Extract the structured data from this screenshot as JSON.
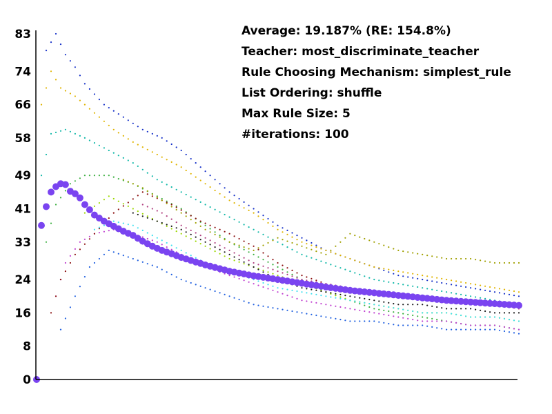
{
  "chart_data": {
    "type": "scatter",
    "title": "",
    "xlabel": "",
    "ylabel": "",
    "ylim": [
      0,
      83
    ],
    "xlim": [
      0,
      100
    ],
    "yticks": [
      0,
      8,
      16,
      24,
      33,
      41,
      49,
      58,
      66,
      74,
      83
    ],
    "grid": false,
    "annotations": [
      "Average: 19.187% (RE: 154.8%)",
      "Teacher: most_discriminate_teacher",
      "Rule Choosing Mechanism: simplest_rule",
      "List Ordering: shuffle",
      "Max Rule Size: 5",
      "#iterations: 100"
    ],
    "average_series": {
      "color": "#7a44f0",
      "x": [
        0,
        1,
        2,
        3,
        4,
        5,
        6,
        7,
        8,
        9,
        10,
        12,
        14,
        16,
        18,
        20,
        22,
        24,
        26,
        28,
        30,
        35,
        40,
        45,
        50,
        55,
        60,
        65,
        70,
        75,
        80,
        85,
        90,
        95,
        100
      ],
      "y": [
        0,
        37,
        41.5,
        45,
        46.3,
        47,
        46.8,
        45.2,
        44.6,
        43.6,
        42,
        39.5,
        38,
        36.8,
        35.6,
        34.6,
        33.2,
        32,
        31,
        30.2,
        29.3,
        27.5,
        26,
        24.9,
        24,
        23.1,
        22.2,
        21.4,
        20.8,
        20.2,
        19.6,
        19,
        18.6,
        18.2,
        17.8
      ]
    },
    "runs": [
      {
        "color": "#1530c8",
        "x": [
          2,
          4,
          6,
          8,
          10,
          14,
          18,
          22,
          26,
          30,
          35,
          40,
          45,
          50,
          55,
          60,
          65,
          70,
          75,
          80,
          85,
          90,
          95,
          100
        ],
        "y": [
          79,
          83,
          78,
          75,
          71,
          66,
          63,
          60,
          58,
          55,
          50,
          45,
          41,
          37,
          34,
          31,
          29,
          27,
          25,
          24,
          23,
          22,
          21,
          20
        ]
      },
      {
        "color": "#e0b400",
        "x": [
          1,
          3,
          5,
          8,
          12,
          16,
          20,
          25,
          30,
          35,
          40,
          45,
          50,
          55,
          60,
          65,
          70,
          75,
          80,
          85,
          90,
          95,
          100
        ],
        "y": [
          66,
          74,
          70,
          68,
          64,
          60,
          57,
          54,
          51,
          47,
          43,
          40,
          36,
          33,
          31,
          29,
          27,
          26,
          25,
          24,
          23,
          22,
          21
        ]
      },
      {
        "color": "#10b8a8",
        "x": [
          1,
          3,
          6,
          10,
          15,
          20,
          25,
          30,
          35,
          40,
          45,
          50,
          55,
          60,
          65,
          70,
          75,
          80,
          85,
          90,
          95,
          100
        ],
        "y": [
          49,
          59,
          60,
          58,
          55,
          52,
          48,
          45,
          42,
          39,
          36,
          33,
          30,
          28,
          26,
          24,
          23,
          22,
          21,
          20,
          19,
          18
        ]
      },
      {
        "color": "#3cb040",
        "x": [
          2,
          4,
          7,
          10,
          15,
          20,
          25,
          30,
          35,
          40,
          45,
          50,
          55,
          60,
          65,
          70,
          75,
          80,
          85,
          90,
          95,
          100
        ],
        "y": [
          33,
          42,
          47,
          49,
          49,
          47,
          44,
          41,
          37,
          33,
          30,
          27,
          24,
          21,
          19,
          17,
          16,
          15,
          14,
          13,
          13,
          12
        ]
      },
      {
        "color": "#c040d0",
        "x": [
          4,
          6,
          9,
          12,
          16,
          20,
          25,
          30,
          35,
          40,
          45,
          50,
          55,
          60,
          65,
          70,
          75,
          80,
          85,
          90,
          95,
          100
        ],
        "y": [
          20,
          28,
          33,
          35,
          36,
          35,
          33,
          30,
          27,
          25,
          23,
          21,
          19,
          18,
          17,
          16,
          15,
          14,
          14,
          13,
          13,
          12
        ]
      },
      {
        "color": "#8b1010",
        "x": [
          3,
          5,
          8,
          12,
          16,
          22,
          28,
          34,
          40,
          45,
          50,
          55,
          60,
          65,
          70,
          75,
          80,
          85,
          90,
          95,
          100
        ],
        "y": [
          16,
          24,
          30,
          35,
          40,
          45,
          42,
          38,
          35,
          32,
          28,
          25,
          23,
          22,
          21,
          20,
          19,
          19,
          18,
          18,
          17
        ]
      },
      {
        "color": "#2060e0",
        "x": [
          5,
          8,
          11,
          15,
          20,
          25,
          30,
          35,
          40,
          45,
          50,
          55,
          60,
          65,
          70,
          75,
          80,
          85,
          90,
          95,
          100
        ],
        "y": [
          12,
          20,
          27,
          31,
          29,
          27,
          24,
          22,
          20,
          18,
          17,
          16,
          15,
          14,
          14,
          13,
          13,
          12,
          12,
          12,
          11
        ]
      },
      {
        "color": "#9cd800",
        "x": [
          10,
          15,
          20,
          25,
          30,
          35,
          40,
          45,
          50,
          55,
          60,
          65,
          70,
          75,
          80,
          85,
          90,
          95,
          100
        ],
        "y": [
          40,
          44,
          41,
          38,
          35,
          32,
          29,
          27,
          25,
          23,
          21,
          19,
          18,
          17,
          16,
          16,
          15,
          15,
          14
        ]
      },
      {
        "color": "#40e0f0",
        "x": [
          12,
          16,
          20,
          25,
          30,
          35,
          40,
          45,
          50,
          55,
          60,
          65,
          70,
          75,
          80,
          85,
          90,
          95,
          100
        ],
        "y": [
          36,
          38,
          37,
          34,
          31,
          28,
          26,
          24,
          22,
          21,
          20,
          19,
          18,
          17,
          16,
          16,
          15,
          15,
          14
        ]
      },
      {
        "color": "#a0a000",
        "x": [
          18,
          22,
          26,
          30,
          35,
          40,
          45,
          50,
          55,
          60,
          65,
          70,
          75,
          80,
          85,
          90,
          95,
          100
        ],
        "y": [
          48,
          46,
          43,
          40,
          36,
          33,
          31,
          34,
          32,
          30,
          35,
          33,
          31,
          30,
          29,
          29,
          28,
          28
        ]
      },
      {
        "color": "#1a1a1a",
        "x": [
          20,
          25,
          30,
          35,
          40,
          45,
          50,
          55,
          60,
          65,
          70,
          75,
          80,
          85,
          90,
          95,
          100
        ],
        "y": [
          40,
          38,
          36,
          33,
          30,
          27,
          24,
          22,
          21,
          20,
          19,
          18,
          18,
          17,
          17,
          16,
          16
        ]
      },
      {
        "color": "#b04080",
        "x": [
          22,
          26,
          30,
          35,
          40,
          45,
          50,
          55,
          60,
          65,
          70,
          75,
          80,
          85,
          90,
          95,
          100
        ],
        "y": [
          42,
          40,
          37,
          34,
          31,
          28,
          26,
          24,
          23,
          22,
          21,
          20,
          19,
          19,
          18,
          18,
          17
        ]
      }
    ]
  }
}
